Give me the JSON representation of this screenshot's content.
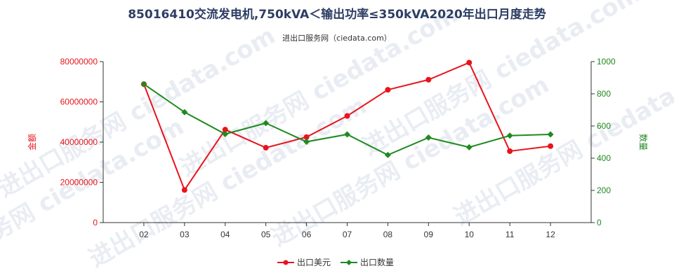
{
  "chart_data": {
    "type": "line",
    "title": "85016410交流发电机,750kVA＜输出功率≤350kVA2020年出口月度走势",
    "subtitle": "进出口服务网（ciedata.com）",
    "watermark": "进出口服务网 ciedata.com",
    "categories": [
      "02",
      "03",
      "04",
      "05",
      "06",
      "07",
      "08",
      "09",
      "10",
      "11",
      "12"
    ],
    "y_left": {
      "label": "金额",
      "ylim": [
        0,
        80000000
      ],
      "ticks": [
        0,
        20000000,
        40000000,
        60000000,
        80000000
      ],
      "tick_labels": [
        "0",
        "20000000",
        "40000000",
        "60000000",
        "80000000"
      ],
      "color": "#e8141c"
    },
    "y_right": {
      "label": "数量",
      "ylim": [
        0,
        1000
      ],
      "ticks": [
        0,
        200,
        400,
        600,
        800,
        1000
      ],
      "tick_labels": [
        "0",
        "200",
        "400",
        "600",
        "800",
        "1000"
      ],
      "color": "#1f8a1f"
    },
    "series": [
      {
        "name": "出口美元",
        "axis": "left",
        "color": "#e8141c",
        "values": [
          68800000,
          16200000,
          46200000,
          37200000,
          42500000,
          53000000,
          66000000,
          71000000,
          79500000,
          35500000,
          38000000
        ]
      },
      {
        "name": "出口数量",
        "axis": "right",
        "color": "#1f8a1f",
        "values": [
          860,
          686,
          550,
          618,
          502,
          548,
          420,
          528,
          468,
          540,
          548
        ]
      }
    ],
    "grid": false,
    "legend_position": "bottom"
  }
}
